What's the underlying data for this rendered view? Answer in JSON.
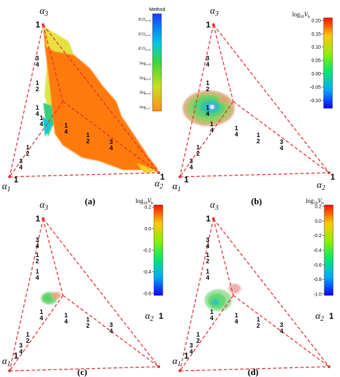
{
  "panels": [
    {
      "caption": "(a)",
      "axes": {
        "a3": "α",
        "a3_sub": "3",
        "a2": "α",
        "a2_sub": "2",
        "a1": "α",
        "a1_sub": "1",
        "one": "1",
        "tick_num": "1",
        "tick_den": [
          "4",
          "2",
          "4"
        ],
        "tick_den_top": [
          "4",
          "2",
          "4"
        ],
        "three": "3"
      },
      "colorbar": {
        "title": "Method",
        "categorical": true,
        "labels": [
          "ICO n=4",
          "ICO n=3",
          "ICO n=2",
          "Seq n=4",
          "Seq n=3",
          "Seq n=2",
          "Seq n=1"
        ],
        "colors": [
          "#1a3cff",
          "#00c8e6",
          "#18d0a0",
          "#3fd53a",
          "#b8e22a",
          "#f0c51e",
          "#ff8a1a"
        ]
      }
    },
    {
      "caption": "(b)",
      "axes": {
        "a3": "α",
        "a3_sub": "3",
        "a2": "α",
        "a2_sub": "2",
        "a1": "α",
        "a1_sub": "1",
        "one": "1",
        "tick_num": "1",
        "tick_den": [
          "4",
          "2",
          "4"
        ],
        "three": "3"
      },
      "colorbar": {
        "title_main": "log",
        "title_sub": "10",
        "title_var": "V",
        "title_var_sub": "h",
        "min": -0.13,
        "max": 0.21,
        "ticks": [
          "0.20",
          "0.15",
          "0.10",
          "0.05",
          "0.00",
          "-0.05",
          "-0.10"
        ]
      }
    },
    {
      "caption": "(c)",
      "axes": {
        "a3": "α",
        "a3_sub": "3",
        "a2": "α",
        "a2_sub": "2",
        "a1": "α",
        "a1_sub": "1",
        "one": "1",
        "tick_num": "1",
        "tick_den": [
          "4",
          "2",
          "4"
        ],
        "three": "3"
      },
      "colorbar": {
        "title_main": "log",
        "title_sub": "10",
        "title_var": "V",
        "title_var_sub": "h",
        "min": -0.62,
        "max": 0.22,
        "ticks": [
          "0.2",
          "0.0",
          "-0.2",
          "-0.4",
          "-0.6"
        ]
      }
    },
    {
      "caption": "(d)",
      "axes": {
        "a3": "α",
        "a3_sub": "3",
        "a2": "α",
        "a2_sub": "2",
        "a1": "α",
        "a1_sub": "1",
        "one": "1",
        "tick_num": "1",
        "tick_den": [
          "4",
          "2",
          "4"
        ],
        "three": "3"
      },
      "colorbar": {
        "title_main": "log",
        "title_sub": "10",
        "title_var": "V",
        "title_var_sub": "h",
        "min": -1.02,
        "max": 0.22,
        "ticks": [
          "0.2",
          "0.0",
          "-0.2",
          "-0.4",
          "-0.6",
          "-0.8",
          "-1.0"
        ]
      }
    }
  ],
  "chart_data": [
    {
      "type": "scatter",
      "description_encoding": "ternary simplex (α1, α2, α3), colour = method",
      "regions": [
        {
          "method": "Seq n=1",
          "alpha1": 0.2,
          "alpha2": 0.45,
          "alpha3": 0.35,
          "note": "dominant region"
        },
        {
          "method": "Seq n=2",
          "alpha1": 0.05,
          "alpha2": 0.05,
          "alpha3": 0.9
        },
        {
          "method": "Seq n=3",
          "alpha1": 0.15,
          "alpha2": 0.75,
          "alpha3": 0.1
        },
        {
          "method": "ICO n=2",
          "alpha1": 0.55,
          "alpha2": 0.2,
          "alpha3": 0.25
        }
      ]
    },
    {
      "type": "scatter",
      "colorscale": [
        -0.13,
        0.21
      ],
      "cluster": {
        "alpha1": 0.33,
        "alpha2": 0.33,
        "alpha3": 0.33,
        "min_value": -0.12,
        "max_value": 0.1
      }
    },
    {
      "type": "scatter",
      "colorscale": [
        -0.62,
        0.22
      ],
      "cluster": {
        "alpha1": 0.4,
        "alpha2": 0.3,
        "alpha3": 0.3,
        "value_range": [
          -0.3,
          0.2
        ]
      }
    },
    {
      "type": "scatter",
      "colorscale": [
        -1.02,
        0.22
      ],
      "cluster": {
        "alpha1": 0.4,
        "alpha2": 0.3,
        "alpha3": 0.3,
        "value_range": [
          -0.6,
          0.2
        ]
      }
    }
  ]
}
